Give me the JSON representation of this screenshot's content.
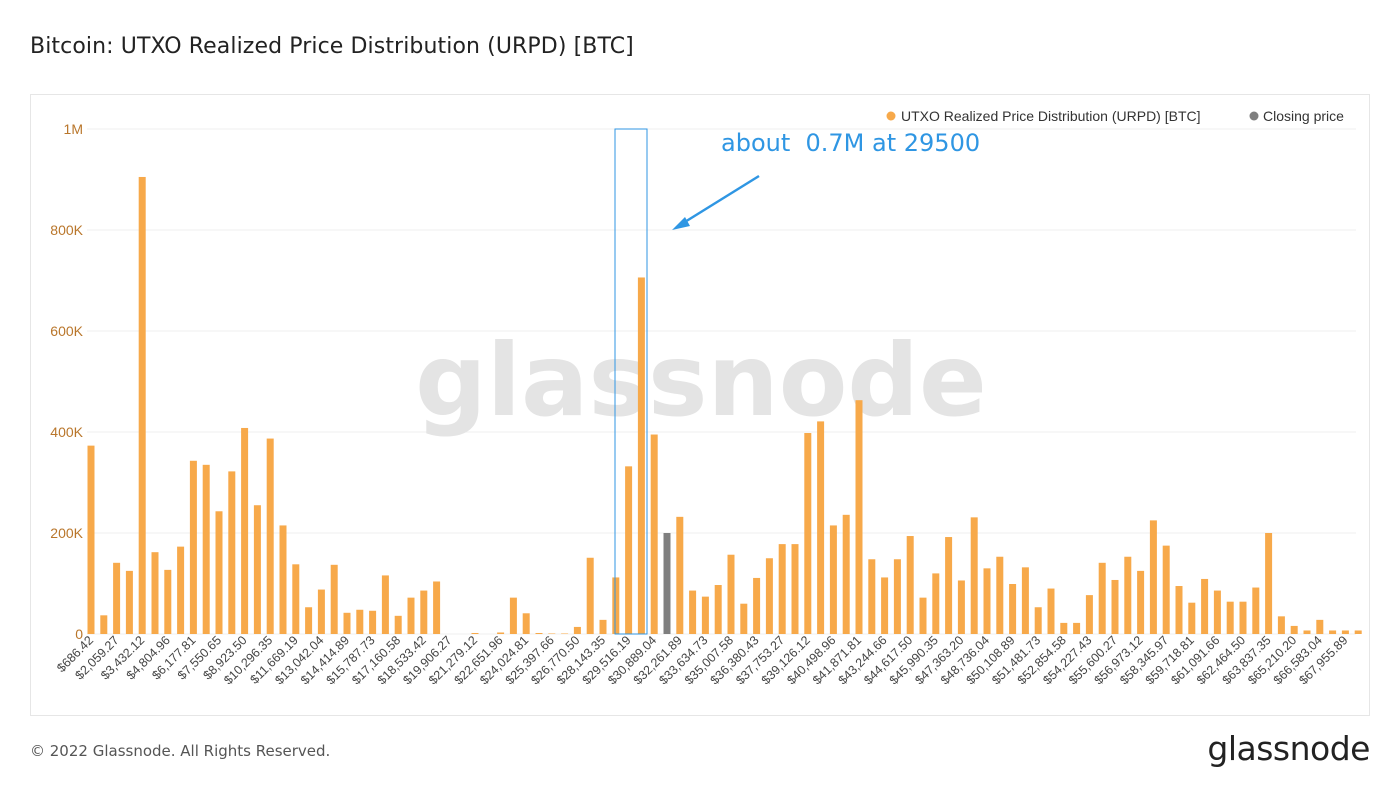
{
  "title": "Bitcoin: UTXO Realized Price Distribution (URPD) [BTC]",
  "footer": "© 2022 Glassnode. All Rights Reserved.",
  "logo_text": "glassnode",
  "watermark": "glassnode",
  "annotation": "about  0.7M at 29500",
  "colors": {
    "bar": "#f7a94a",
    "closing": "#7f7f7f",
    "axis_text": "#b9762b",
    "grid": "#efefef",
    "annotation": "#2f96e3"
  },
  "chart_data": {
    "type": "bar",
    "ylim": [
      0,
      1000000
    ],
    "yticks": [
      0,
      200000,
      400000,
      600000,
      800000,
      1000000
    ],
    "ytick_labels": [
      "0",
      "200K",
      "400K",
      "600K",
      "800K",
      "1M"
    ],
    "grid": true,
    "legend_position": "top-right",
    "series": [
      {
        "name": "UTXO Realized Price Distribution (URPD) [BTC]",
        "color": "#f7a94a"
      },
      {
        "name": "Closing price",
        "color": "#7f7f7f"
      }
    ],
    "xtick_labels": [
      "$686.42",
      "$2,059.27",
      "$3,432.12",
      "$4,804.96",
      "$6,177.81",
      "$7,550.65",
      "$8,923.50",
      "$10,296.35",
      "$11,669.19",
      "$13,042.04",
      "$14,414.89",
      "$15,787.73",
      "$17,160.58",
      "$18,533.42",
      "$19,906.27",
      "$21,279.12",
      "$22,651.96",
      "$24,024.81",
      "$25,397.66",
      "$26,770.50",
      "$28,143.35",
      "$29,516.19",
      "$30,889.04",
      "$32,261.89",
      "$33,634.73",
      "$35,007.58",
      "$36,380.43",
      "$37,753.27",
      "$39,126.12",
      "$40,498.96",
      "$41,871.81",
      "$43,244.66",
      "$44,617.50",
      "$45,990.35",
      "$47,363.20",
      "$48,736.04",
      "$50,108.89",
      "$51,481.73",
      "$52,854.58",
      "$54,227.43",
      "$55,600.27",
      "$56,973.12",
      "$58,345.97",
      "$59,718.81",
      "$61,091.66",
      "$62,464.50",
      "$63,837.35",
      "$65,210.20",
      "$66,583.04",
      "$67,955.89"
    ],
    "values": [
      373000,
      37000,
      141000,
      125000,
      905000,
      162000,
      127000,
      173000,
      343000,
      335000,
      243000,
      322000,
      408000,
      255000,
      387000,
      215000,
      138000,
      53000,
      88000,
      137000,
      42000,
      48000,
      46000,
      116000,
      36000,
      72000,
      86000,
      104000,
      0,
      0,
      2000,
      0,
      3000,
      72000,
      41000,
      2000,
      1000,
      1000,
      14000,
      151000,
      28000,
      112000,
      332000,
      706000,
      395000,
      200000,
      232000,
      86000,
      74000,
      97000,
      157000,
      60000,
      111000,
      150000,
      178000,
      178000,
      398000,
      421000,
      215000,
      236000,
      463000,
      148000,
      112000,
      148000,
      194000,
      72000,
      120000,
      192000,
      106000,
      231000,
      130000,
      153000,
      99000,
      132000,
      53000,
      90000,
      22000,
      22000,
      77000,
      141000,
      107000,
      153000,
      125000,
      225000,
      175000,
      95000,
      62000,
      109000,
      86000,
      64000,
      64000,
      92000,
      200000,
      35000,
      16000,
      7000,
      28000,
      7000,
      7000,
      7000
    ],
    "closing_price_index": 45
  }
}
